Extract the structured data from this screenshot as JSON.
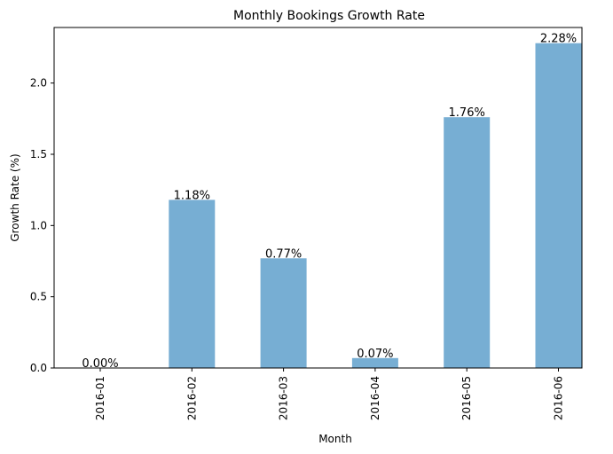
{
  "chart_data": {
    "type": "bar",
    "title": "Monthly Bookings Growth Rate",
    "xlabel": "Month",
    "ylabel": "Growth Rate (%)",
    "categories": [
      "2016-01",
      "2016-02",
      "2016-03",
      "2016-04",
      "2016-05",
      "2016-06"
    ],
    "values": [
      0.0,
      1.18,
      0.77,
      0.07,
      1.76,
      2.28
    ],
    "data_labels": [
      "0.00%",
      "1.18%",
      "0.77%",
      "0.07%",
      "1.76%",
      "2.28%"
    ],
    "ylim": [
      0,
      2.39
    ],
    "yticks": [
      0.0,
      0.5,
      1.0,
      1.5,
      2.0
    ],
    "ytick_labels": [
      "0.0",
      "0.5",
      "1.0",
      "1.5",
      "2.0"
    ],
    "bar_color": "#77aed3",
    "grid": false,
    "legend": "none"
  }
}
